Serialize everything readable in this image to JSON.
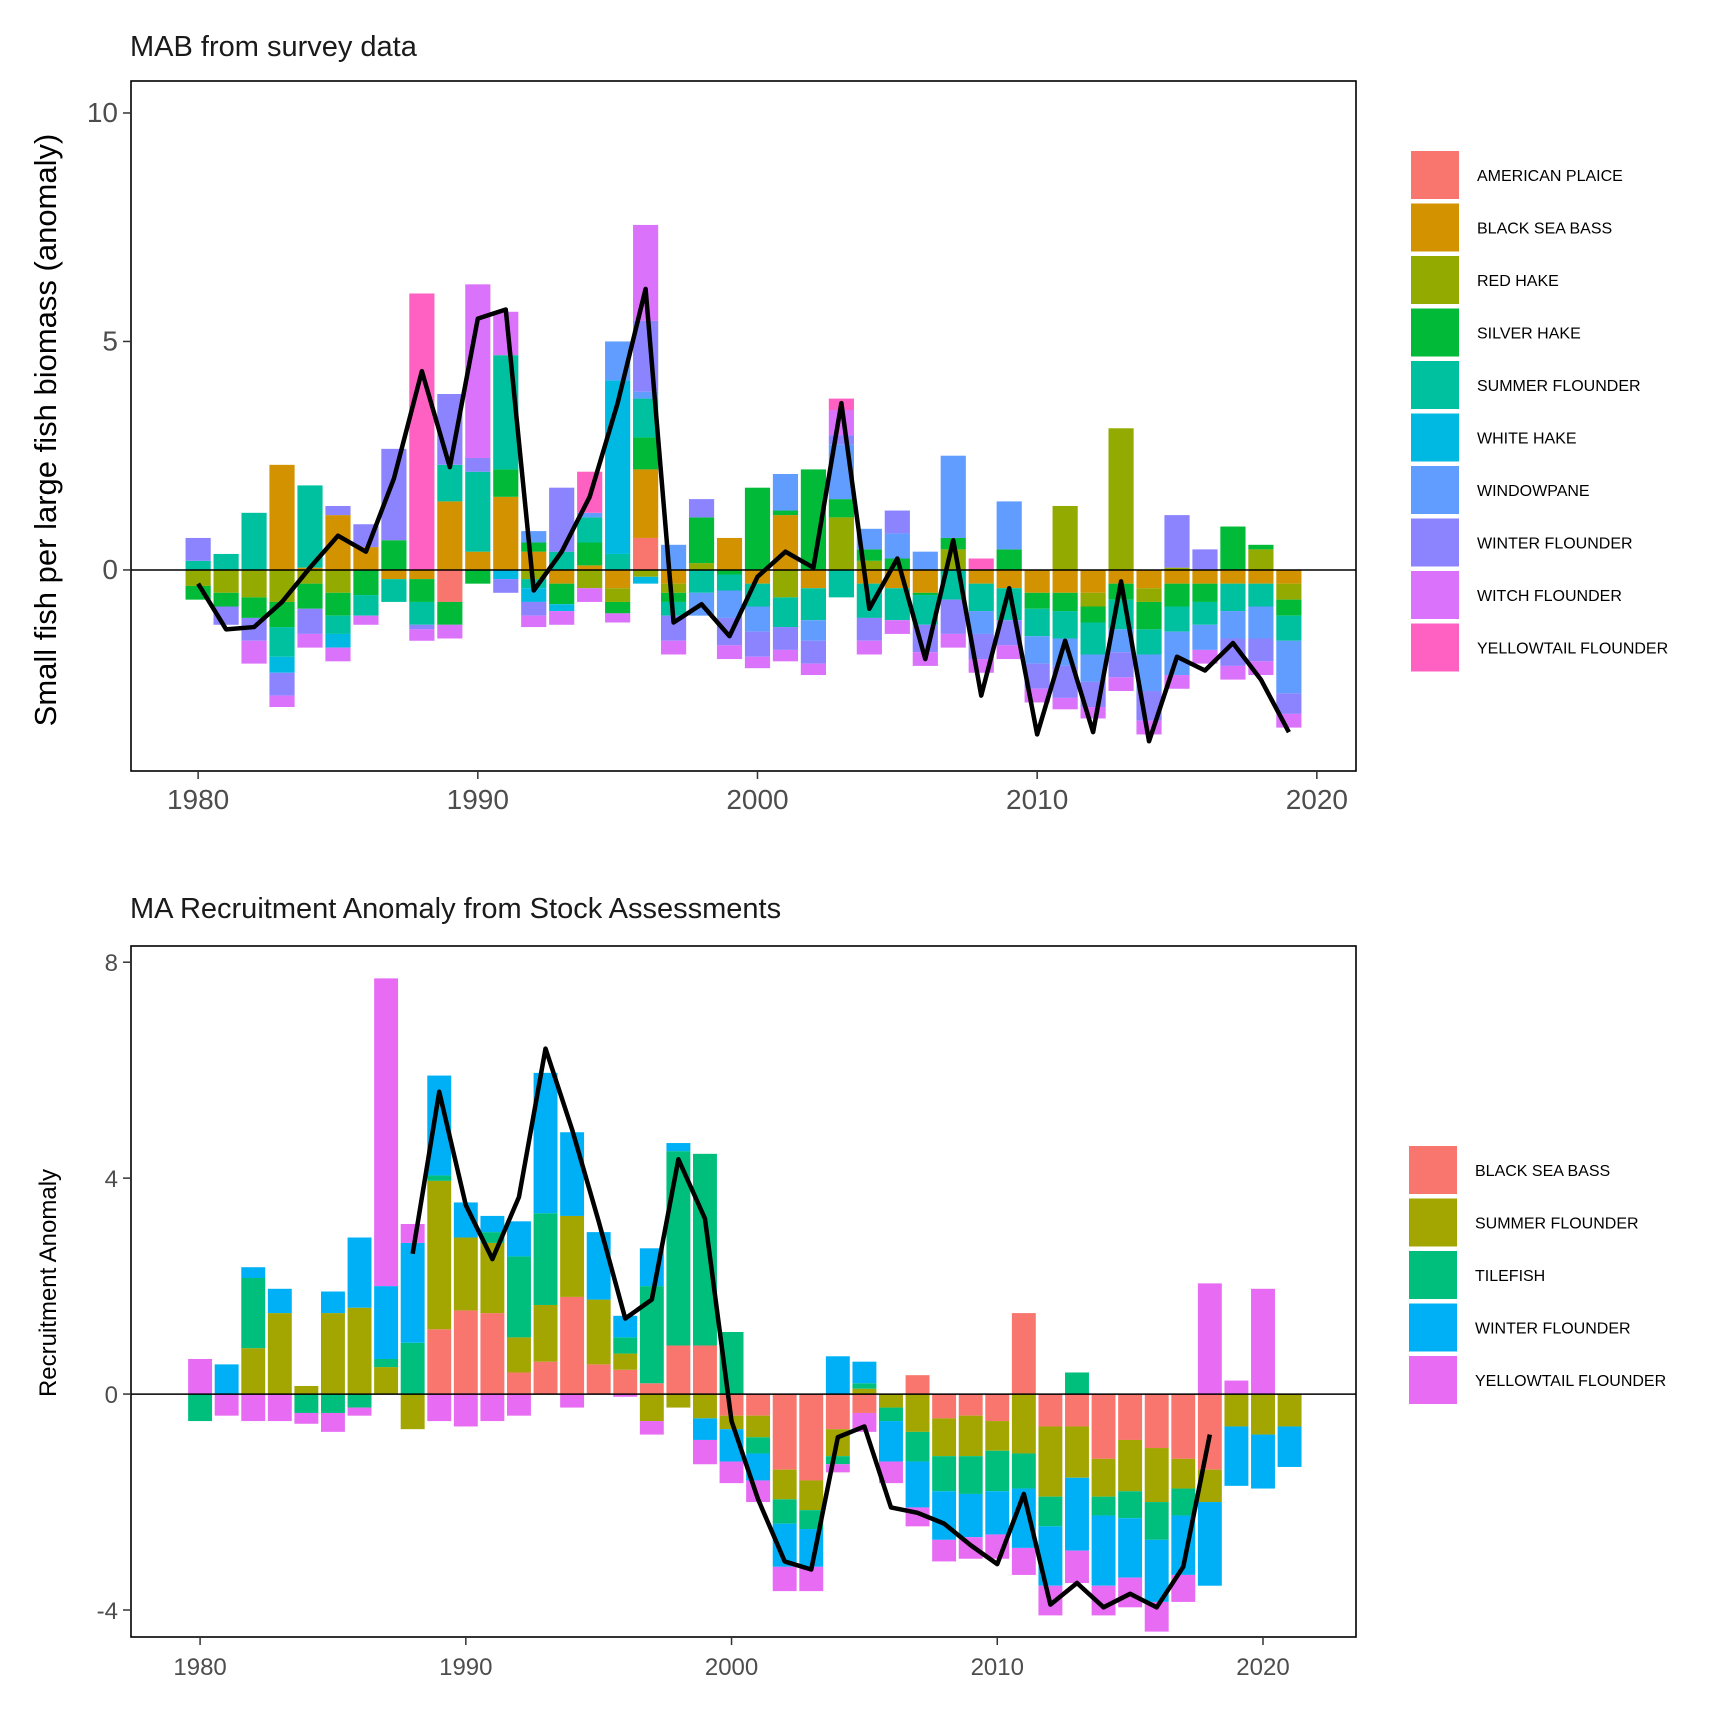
{
  "colors": {
    "AMERICAN PLAICE": "#F8766D",
    "BLACK SEA BASS": "#D39200",
    "RED HAKE": "#93AA00",
    "SILVER HAKE": "#00BA38",
    "SUMMER FLOUNDER": "#00C19F",
    "WHITE HAKE": "#00B9E3",
    "WINDOWPANE": "#619CFF",
    "WINTER FLOUNDER": "#8C83FF",
    "WITCH FLOUNDER": "#DB72FB",
    "YELLOWTAIL FLOUNDER": "#FF61C3",
    "b_BLACK SEA BASS": "#F8766D",
    "b_SUMMER FLOUNDER": "#A3A500",
    "b_TILEFISH": "#00BF7D",
    "b_WINTER FLOUNDER": "#00B0F6",
    "b_YELLOWTAIL FLOUNDER": "#E76BF3"
  },
  "chart_data": [
    {
      "type": "bar",
      "stacked": true,
      "title": "MAB from survey data",
      "xlabel": "",
      "ylabel": "Small fish per large fish biomass (anomaly)",
      "xlim": [
        1977.6,
        2021.4
      ],
      "ylim": [
        -4.4,
        10.7
      ],
      "x_ticks": [
        1980,
        1990,
        2000,
        2010,
        2020
      ],
      "y_ticks": [
        0,
        5,
        10
      ],
      "legend": {
        "placement": "right",
        "entries": [
          "AMERICAN PLAICE",
          "BLACK SEA BASS",
          "RED HAKE",
          "SILVER HAKE",
          "SUMMER FLOUNDER",
          "WHITE HAKE",
          "WINDOWPANE",
          "WINTER FLOUNDER",
          "WITCH FLOUNDER",
          "YELLOWTAIL FLOUNDER"
        ]
      },
      "x": [
        1980,
        1981,
        1982,
        1983,
        1984,
        1985,
        1986,
        1987,
        1988,
        1989,
        1990,
        1991,
        1992,
        1993,
        1994,
        1995,
        1996,
        1997,
        1998,
        1999,
        2000,
        2001,
        2002,
        2003,
        2004,
        2005,
        2006,
        2007,
        2008,
        2009,
        2010,
        2011,
        2012,
        2013,
        2014,
        2015,
        2016,
        2017,
        2018,
        2019
      ],
      "series": [
        {
          "name": "AMERICAN PLAICE",
          "values": [
            0,
            0,
            0,
            0,
            0,
            0,
            0,
            0,
            0,
            -0.7,
            0,
            0,
            0,
            0,
            0,
            0,
            0.7,
            0,
            0,
            0,
            0,
            0,
            0,
            0,
            0,
            0,
            0,
            0,
            0,
            0,
            0,
            0,
            0,
            0,
            0,
            0,
            0,
            0,
            0,
            0
          ]
        },
        {
          "name": "BLACK SEA BASS",
          "values": [
            0,
            0,
            0,
            2.3,
            0.05,
            1.2,
            0.5,
            -0.2,
            -0.2,
            1.5,
            0.4,
            1.6,
            0.4,
            -0.3,
            0.1,
            -0.4,
            1.5,
            -0.3,
            0,
            0.7,
            -0.3,
            1.2,
            -0.4,
            0,
            -0.3,
            -0.4,
            -0.5,
            0,
            -0.3,
            -0.4,
            -0.5,
            -0.5,
            -0.5,
            -0.3,
            -0.4,
            -0.3,
            -0.3,
            -0.3,
            -0.3,
            -0.3
          ]
        },
        {
          "name": "RED HAKE",
          "values": [
            -0.35,
            -0.5,
            -0.6,
            -0.7,
            -0.3,
            -0.5,
            0,
            0,
            0,
            0,
            0,
            0,
            -0.2,
            0,
            -0.4,
            -0.3,
            -0.15,
            -0.2,
            0.15,
            0,
            0,
            -0.6,
            0,
            1.15,
            0.2,
            0,
            0,
            0.45,
            0,
            0,
            0,
            1.4,
            -0.3,
            3.1,
            -0.3,
            0.05,
            0,
            0,
            0.45,
            -0.35
          ]
        },
        {
          "name": "SILVER HAKE",
          "values": [
            -0.3,
            -0.3,
            -0.45,
            -0.55,
            -0.55,
            -0.5,
            -0.55,
            0.65,
            -0.5,
            -0.5,
            -0.3,
            0.6,
            0.2,
            -0.45,
            0.5,
            -0.25,
            0.7,
            -0.2,
            1.0,
            -0.1,
            1.8,
            0.1,
            2.2,
            0.4,
            0.25,
            0.25,
            -0.05,
            0.25,
            0,
            0.45,
            -0.35,
            -0.4,
            -0.35,
            -0.35,
            -0.6,
            -0.5,
            -0.4,
            0.95,
            0.1,
            -0.35
          ]
        },
        {
          "name": "SUMMER FLOUNDER",
          "values": [
            0.2,
            0.35,
            1.25,
            -0.65,
            1.8,
            -0.4,
            -0.45,
            -0.5,
            -0.5,
            0.8,
            1.75,
            2.5,
            -0.2,
            0.4,
            0.55,
            0.35,
            0.85,
            -0.3,
            -0.5,
            -0.35,
            -0.5,
            -0.65,
            -0.7,
            -0.6,
            -0.75,
            -0.7,
            -0.65,
            -0.65,
            -0.6,
            -0.7,
            -0.6,
            -0.6,
            -0.7,
            -0.65,
            -0.55,
            -0.55,
            -0.5,
            -0.6,
            -0.5,
            -0.55
          ]
        },
        {
          "name": "WHITE HAKE",
          "values": [
            0,
            0,
            0,
            -0.35,
            0,
            -0.3,
            0,
            0,
            0,
            0,
            0,
            -0.2,
            -0.3,
            -0.15,
            0,
            3.8,
            -0.15,
            0,
            0,
            0,
            0,
            0,
            0,
            0,
            0,
            0,
            0,
            0,
            0,
            0,
            0,
            0,
            0,
            0,
            0,
            0,
            0,
            0,
            0,
            0
          ]
        },
        {
          "name": "WINDOWPANE",
          "values": [
            0,
            0,
            0,
            0,
            0,
            0,
            0,
            0,
            0,
            0,
            0,
            0,
            0.25,
            0,
            0.1,
            0.85,
            0.15,
            0.55,
            -0.5,
            -0.6,
            -0.55,
            0.8,
            -0.45,
            1.2,
            0.45,
            0.55,
            0.4,
            1.8,
            -0.5,
            1.05,
            -0.6,
            -0.6,
            -0.6,
            -0.5,
            -0.8,
            -0.95,
            -0.55,
            -0.6,
            -0.7,
            -1.15
          ]
        },
        {
          "name": "WINTER FLOUNDER",
          "values": [
            0.5,
            -0.4,
            -0.5,
            -0.5,
            -0.55,
            0.2,
            0.5,
            2.0,
            -0.1,
            1.55,
            0.3,
            -0.3,
            -0.3,
            1.4,
            0,
            0,
            1.55,
            -0.55,
            0.4,
            -0.6,
            -0.55,
            -0.5,
            -0.5,
            0.2,
            -0.5,
            0.5,
            -0.6,
            -0.75,
            -0.55,
            -0.55,
            -0.55,
            -0.7,
            -0.55,
            -0.55,
            -0.65,
            1.15,
            0.45,
            -0.6,
            -0.5,
            -0.45
          ]
        },
        {
          "name": "WITCH FLOUNDER",
          "values": [
            0,
            0,
            -0.5,
            -0.25,
            -0.3,
            -0.3,
            -0.2,
            0,
            -0.25,
            -0.3,
            3.8,
            0.95,
            -0.25,
            -0.3,
            -0.3,
            -0.2,
            2.1,
            -0.3,
            0,
            -0.3,
            -0.25,
            -0.25,
            -0.25,
            0.55,
            -0.3,
            -0.3,
            -0.3,
            -0.3,
            -0.3,
            -0.3,
            -0.3,
            -0.25,
            -0.25,
            -0.3,
            -0.3,
            -0.3,
            -0.3,
            -0.3,
            -0.3,
            -0.3
          ]
        },
        {
          "name": "YELLOWTAIL FLOUNDER",
          "values": [
            0,
            0,
            0,
            0,
            0,
            0,
            0,
            0,
            6.05,
            0,
            0,
            0,
            0,
            0,
            0.9,
            0,
            0,
            0,
            0,
            0,
            0,
            0,
            0,
            0.25,
            0,
            0,
            0,
            0,
            0.25,
            0,
            0,
            0,
            0,
            0,
            0,
            0,
            0,
            0,
            0,
            0
          ]
        }
      ],
      "line": {
        "x": [
          1980,
          1981,
          1982,
          1983,
          1984,
          1985,
          1986,
          1987,
          1988,
          1989,
          1990,
          1991,
          1992,
          1993,
          1994,
          1995,
          1996,
          1997,
          1998,
          1999,
          2000,
          2001,
          2002,
          2003,
          2004,
          2005,
          2006,
          2007,
          2008,
          2009,
          2010,
          2011,
          2012,
          2013,
          2014,
          2015,
          2016,
          2017,
          2018,
          2019
        ],
        "y": [
          -0.3,
          -1.3,
          -1.25,
          -0.7,
          0.05,
          0.75,
          0.4,
          2.0,
          4.35,
          2.25,
          5.5,
          5.7,
          -0.45,
          0.4,
          1.6,
          3.65,
          6.15,
          -1.15,
          -0.75,
          -1.45,
          -0.15,
          0.4,
          0.05,
          3.65,
          -0.85,
          0.25,
          -1.95,
          0.65,
          -2.75,
          -0.4,
          -3.6,
          -1.55,
          -3.55,
          -0.25,
          -3.75,
          -1.9,
          -2.2,
          -1.6,
          -2.4,
          -3.55
        ]
      }
    },
    {
      "type": "bar",
      "stacked": true,
      "title": "MA Recruitment Anomaly from Stock Assessments",
      "xlabel": "",
      "ylabel": "Recruitment Anomaly",
      "xlim": [
        1977.4,
        2023.5
      ],
      "ylim": [
        -4.5,
        8.3
      ],
      "x_ticks": [
        1980,
        1990,
        2000,
        2010,
        2020
      ],
      "y_ticks": [
        -4,
        0,
        4,
        8
      ],
      "legend": {
        "placement": "right",
        "entries": [
          "BLACK SEA BASS",
          "SUMMER FLOUNDER",
          "TILEFISH",
          "WINTER FLOUNDER",
          "YELLOWTAIL FLOUNDER"
        ]
      },
      "x": [
        1980,
        1981,
        1982,
        1983,
        1984,
        1985,
        1986,
        1987,
        1988,
        1989,
        1990,
        1991,
        1992,
        1993,
        1994,
        1995,
        1996,
        1997,
        1998,
        1999,
        2000,
        2001,
        2002,
        2003,
        2004,
        2005,
        2006,
        2007,
        2008,
        2009,
        2010,
        2011,
        2012,
        2013,
        2014,
        2015,
        2016,
        2017,
        2018,
        2019,
        2020,
        2021
      ],
      "series": [
        {
          "name": "BLACK SEA BASS",
          "values": [
            0,
            0,
            0,
            0,
            0,
            0,
            0,
            0,
            0,
            1.2,
            1.55,
            1.5,
            0.4,
            0.6,
            1.8,
            0.55,
            0.45,
            0.2,
            0.9,
            0.9,
            -0.4,
            -0.4,
            -1.4,
            -1.6,
            -0.65,
            -0.35,
            0,
            0.35,
            -0.45,
            -0.4,
            -0.5,
            1.5,
            -0.6,
            -0.6,
            -1.2,
            -0.85,
            -1.0,
            -1.2,
            -1.4,
            0,
            0,
            0
          ]
        },
        {
          "name": "SUMMER FLOUNDER",
          "values": [
            0,
            0,
            0.85,
            1.5,
            0.15,
            1.5,
            1.6,
            0.5,
            -0.65,
            2.75,
            1.35,
            1.3,
            0.65,
            1.05,
            1.5,
            1.2,
            0.3,
            -0.5,
            -0.25,
            -0.45,
            -0.25,
            -0.4,
            -0.55,
            -0.55,
            -0.5,
            0.1,
            -0.25,
            -0.7,
            -0.7,
            -0.75,
            -0.55,
            -1.1,
            -1.3,
            -0.95,
            -0.7,
            -0.95,
            -1.0,
            -0.55,
            -0.6,
            -0.6,
            -0.75,
            -0.6
          ]
        },
        {
          "name": "TILEFISH",
          "values": [
            -0.5,
            0,
            1.3,
            0,
            -0.35,
            -0.35,
            -0.25,
            0.15,
            0.95,
            0.1,
            0,
            0.2,
            1.5,
            1.7,
            0,
            0,
            0.3,
            1.8,
            3.6,
            3.55,
            1.15,
            -0.3,
            -0.45,
            -0.35,
            -0.15,
            0.1,
            -0.25,
            -0.55,
            -0.65,
            -0.7,
            -0.75,
            -0.65,
            -0.55,
            0.4,
            -0.35,
            -0.5,
            -0.7,
            -0.5,
            0,
            0,
            0,
            0
          ]
        },
        {
          "name": "WINTER FLOUNDER",
          "values": [
            0,
            0.55,
            0.2,
            0.45,
            0,
            0.4,
            1.3,
            1.35,
            1.85,
            1.85,
            0.65,
            0.3,
            0.65,
            2.6,
            1.55,
            1.25,
            0.4,
            0.7,
            0.15,
            -0.4,
            -0.6,
            -0.5,
            -0.8,
            -0.7,
            0.7,
            0.4,
            -0.75,
            -0.85,
            -0.9,
            -0.8,
            -0.8,
            -1.1,
            -1.1,
            -1.35,
            -1.3,
            -1.1,
            -1.15,
            -1.1,
            -1.55,
            -1.1,
            -1.0,
            -0.75
          ]
        },
        {
          "name": "YELLOWTAIL FLOUNDER",
          "values": [
            0.65,
            -0.4,
            -0.5,
            -0.5,
            -0.2,
            -0.35,
            -0.15,
            5.7,
            0.35,
            -0.5,
            -0.6,
            -0.5,
            -0.4,
            0,
            -0.25,
            0,
            -0.05,
            -0.25,
            0,
            -0.45,
            -0.4,
            -0.4,
            -0.45,
            -0.45,
            -0.15,
            -0.35,
            -0.4,
            -0.35,
            -0.4,
            -0.4,
            -0.45,
            -0.5,
            -0.55,
            -0.6,
            -0.55,
            -0.55,
            -0.55,
            -0.5,
            2.05,
            0.25,
            1.95,
            0
          ]
        }
      ],
      "line": {
        "x": [
          1988,
          1989,
          1990,
          1991,
          1992,
          1993,
          1994,
          1995,
          1996,
          1997,
          1998,
          1999,
          2000,
          2001,
          2002,
          2003,
          2004,
          2005,
          2006,
          2007,
          2008,
          2009,
          2010,
          2011,
          2012,
          2013,
          2014,
          2015,
          2016,
          2017,
          2018
        ],
        "y": [
          2.6,
          5.6,
          3.5,
          2.5,
          3.65,
          6.4,
          4.9,
          3.2,
          1.4,
          1.75,
          4.35,
          3.25,
          -0.5,
          -1.95,
          -3.1,
          -3.25,
          -0.8,
          -0.6,
          -2.1,
          -2.2,
          -2.4,
          -2.8,
          -3.15,
          -1.85,
          -3.9,
          -3.5,
          -3.95,
          -3.7,
          -3.95,
          -3.2,
          -0.75
        ]
      }
    }
  ]
}
